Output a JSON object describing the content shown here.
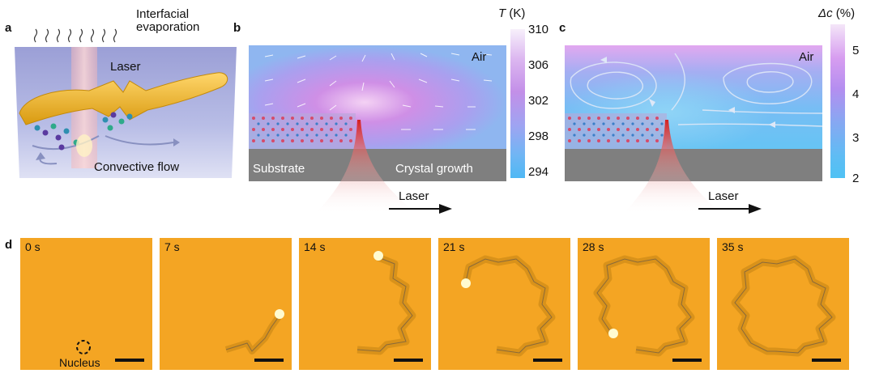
{
  "panels": {
    "a": {
      "label": "a",
      "evaporation": [
        "Interfacial",
        "evaporation"
      ],
      "laser": "Laser",
      "flow": "Convective flow"
    },
    "b": {
      "label": "b",
      "air": "Air",
      "substrate": "Substrate",
      "growth": "Crystal growth",
      "laser": "Laser",
      "colorbar": {
        "title_italic": "T",
        "title_rest": " (K)",
        "ticks": [
          "310",
          "306",
          "302",
          "298",
          "294"
        ]
      }
    },
    "c": {
      "label": "c",
      "air": "Air",
      "laser": "Laser",
      "colorbar": {
        "title_italic": "Δc",
        "title_rest": " (%)",
        "ticks": [
          "5",
          "4",
          "3",
          "2"
        ]
      }
    },
    "d": {
      "label": "d",
      "nucleus": "Nucleus",
      "times": [
        "0 s",
        "7 s",
        "14 s",
        "21 s",
        "28 s",
        "35 s"
      ]
    }
  },
  "colors": {
    "frame_bg": "#f4a523",
    "substrate": "#7f7f7f",
    "laser_red": "#d42020",
    "crystal_gold": "#f0b020"
  }
}
